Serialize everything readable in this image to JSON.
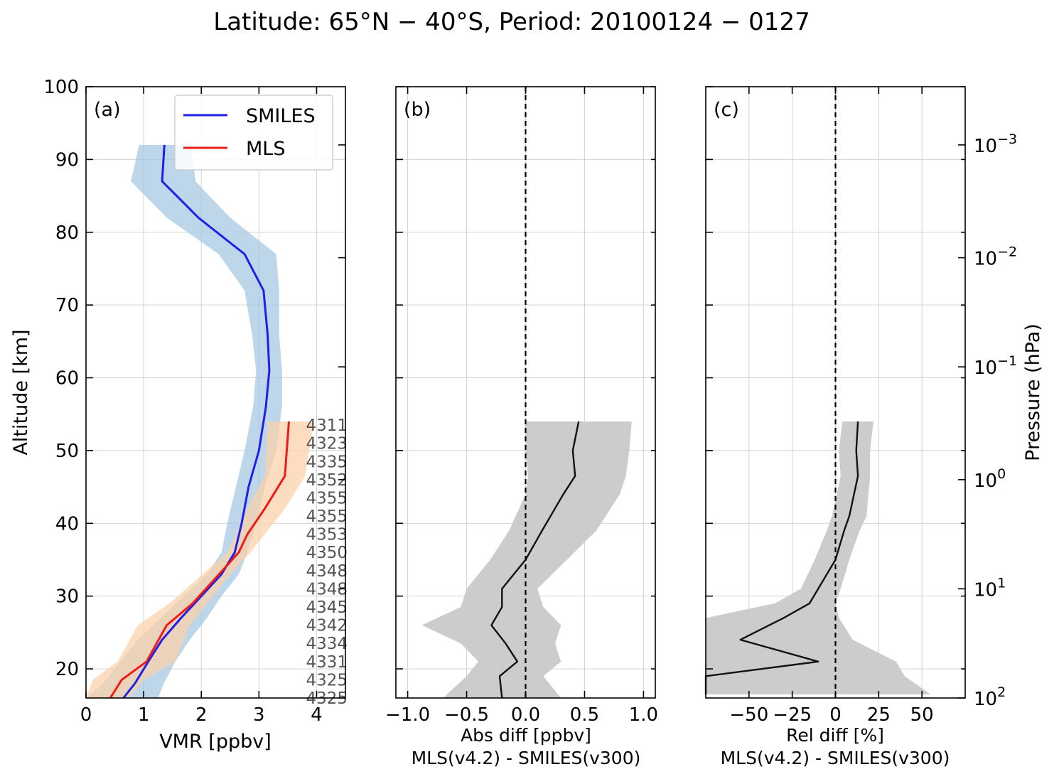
{
  "title": "Latitude: 65°N − 40°S, Period: 20100124 − 0127",
  "colors": {
    "smiles": "#1f1fe6",
    "smiles_band": "#a7c8e2",
    "mls": "#ef1b16",
    "mls_band": "#fbd1ab",
    "diff": "#111111",
    "diff_band": "#cccccc"
  },
  "chart_data": [
    {
      "id": "a",
      "panel_label": "(a)",
      "type": "line",
      "xlabel": "VMR [ppbv]",
      "ylabel": "Altitude [km]",
      "xlim": [
        0,
        4.5
      ],
      "ylim": [
        16,
        100
      ],
      "xticks": [
        0,
        1,
        2,
        3,
        4
      ],
      "xtick_labels": [
        "0",
        "1",
        "2",
        "3",
        "4"
      ],
      "yticks": [
        20,
        30,
        40,
        50,
        60,
        70,
        80,
        90,
        100
      ],
      "ytick_labels": [
        "20",
        "30",
        "40",
        "50",
        "60",
        "70",
        "80",
        "90",
        "100"
      ],
      "grid": true,
      "legend": {
        "placement": "top-right",
        "entries": [
          "SMILES",
          "MLS"
        ]
      },
      "series": [
        {
          "name": "SMILES",
          "color": "#1f1fe6",
          "y": [
            16,
            18,
            21,
            24,
            27,
            30,
            33,
            36,
            40,
            45,
            50,
            56,
            61,
            66,
            72,
            77,
            82,
            87,
            92
          ],
          "x": [
            0.65,
            0.85,
            1.08,
            1.32,
            1.65,
            2.0,
            2.35,
            2.58,
            2.7,
            2.82,
            3.0,
            3.12,
            3.18,
            3.15,
            3.08,
            2.75,
            1.95,
            1.32,
            1.36
          ],
          "lower": [
            0.0,
            0.3,
            0.6,
            0.9,
            1.3,
            1.7,
            2.1,
            2.35,
            2.45,
            2.6,
            2.75,
            2.9,
            2.95,
            2.88,
            2.75,
            2.3,
            1.4,
            0.78,
            0.92
          ],
          "upper": [
            1.25,
            1.35,
            1.55,
            1.8,
            2.1,
            2.35,
            2.65,
            2.8,
            2.95,
            3.1,
            3.3,
            3.4,
            3.4,
            3.35,
            3.35,
            3.3,
            2.5,
            1.9,
            1.82
          ]
        },
        {
          "name": "MLS",
          "color": "#ef1b16",
          "y": [
            16,
            18.5,
            21,
            26,
            29,
            32.5,
            36,
            38.5,
            42,
            46.5,
            54
          ],
          "x": [
            0.42,
            0.62,
            1.05,
            1.4,
            1.85,
            2.25,
            2.65,
            2.8,
            3.1,
            3.45,
            3.52
          ],
          "lower": [
            0.0,
            0.12,
            0.55,
            0.9,
            1.45,
            1.95,
            2.45,
            2.6,
            2.8,
            3.1,
            3.15
          ],
          "upper": [
            0.75,
            1.0,
            1.55,
            1.8,
            2.1,
            2.45,
            2.85,
            3.1,
            3.45,
            3.8,
            3.95
          ]
        }
      ],
      "counts": {
        "y": [
          53.5,
          51,
          48.5,
          46,
          43.5,
          41,
          38.5,
          36,
          33.5,
          31,
          28.5,
          26,
          23.5,
          21,
          18.5,
          16
        ],
        "labels": [
          "4311",
          "4323",
          "4335",
          "4352",
          "4355",
          "4355",
          "4353",
          "4350",
          "4348",
          "4348",
          "4345",
          "4342",
          "4334",
          "4331",
          "4325",
          "4325"
        ]
      }
    },
    {
      "id": "b",
      "panel_label": "(b)",
      "type": "line",
      "xlabel": "Abs diff [ppbv]",
      "xlabel2": "MLS(v4.2) - SMILES(v300)",
      "xlim": [
        -1.1,
        1.1
      ],
      "ylim": [
        16,
        100
      ],
      "xticks": [
        -1.0,
        -0.5,
        0.0,
        0.5,
        1.0
      ],
      "xtick_labels": [
        "−1.0",
        "−0.5",
        "0.0",
        "0.5",
        "1.0"
      ],
      "zero_line": 0,
      "grid": true,
      "series": [
        {
          "color": "#111111",
          "y": [
            16,
            19,
            21,
            23.5,
            26,
            28.5,
            31,
            35,
            39,
            44,
            46.5,
            50,
            54
          ],
          "x": [
            -0.2,
            -0.22,
            -0.07,
            -0.17,
            -0.29,
            -0.2,
            -0.2,
            0.0,
            0.14,
            0.32,
            0.42,
            0.4,
            0.45
          ],
          "lower": [
            -0.7,
            -0.5,
            -0.4,
            -0.55,
            -0.88,
            -0.55,
            -0.5,
            -0.3,
            -0.14,
            0.0,
            0.02,
            0.0,
            0.0
          ],
          "upper": [
            0.3,
            0.15,
            0.3,
            0.25,
            0.3,
            0.15,
            0.1,
            0.35,
            0.6,
            0.8,
            0.85,
            0.88,
            0.9
          ]
        }
      ]
    },
    {
      "id": "c",
      "panel_label": "(c)",
      "type": "line",
      "xlabel": "Rel diff [%]",
      "xlabel2": "MLS(v4.2) - SMILES(v300)",
      "ylabel_right": "Pressure (hPa)",
      "xlim": [
        -75,
        75
      ],
      "ylim": [
        16,
        100
      ],
      "xticks": [
        -50,
        -25,
        0,
        25,
        50
      ],
      "xtick_labels": [
        "−50",
        "−25",
        "0",
        "25",
        "50"
      ],
      "zero_line": 0,
      "grid": true,
      "right_axis_ticks": [
        {
          "y": 16,
          "label": "10",
          "exp": "2"
        },
        {
          "y": 31,
          "label": "10",
          "exp": "1"
        },
        {
          "y": 46,
          "label": "10",
          "exp": "0"
        },
        {
          "y": 61.5,
          "label": "10",
          "exp": "−1"
        },
        {
          "y": 76.5,
          "label": "10",
          "exp": "−2"
        },
        {
          "y": 92,
          "label": "10",
          "exp": "−3"
        }
      ],
      "series": [
        {
          "color": "#111111",
          "y": [
            16.5,
            19,
            21,
            24,
            27,
            29,
            31,
            35,
            39,
            41,
            46.5,
            50,
            54
          ],
          "x": [
            -75,
            -75,
            -10,
            -55,
            -30,
            -15,
            -10,
            0,
            5,
            8,
            13,
            12,
            13
          ],
          "lower": [
            -75,
            -75,
            -75,
            -75,
            -75,
            -35,
            -20,
            -12,
            -5,
            -2,
            3,
            2,
            4
          ],
          "upper": [
            55,
            40,
            35,
            10,
            2,
            0,
            3,
            8,
            14,
            18,
            20,
            20,
            22
          ]
        }
      ]
    }
  ]
}
